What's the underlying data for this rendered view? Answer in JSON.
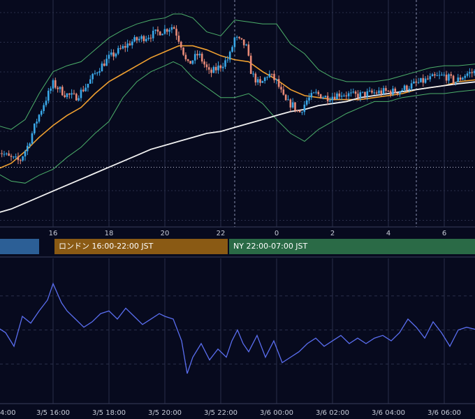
{
  "colors": {
    "background": "#070a1e",
    "grid": "#2a2f4a",
    "candle_up": "#3aa8e8",
    "candle_down": "#e88a78",
    "ma_short": "#f0a030",
    "ma_long": "#f2f2f2",
    "bollinger": "#4caf6a",
    "oscillator": "#5a6ef0",
    "session_tokyo": "#2c5f96",
    "session_london": "#8a5a14",
    "session_ny": "#2a6a46"
  },
  "sessions": [
    {
      "label": ""
    },
    {
      "label": "ロンドン 16:00-22:00 JST"
    },
    {
      "label": "NY 22:00-07:00 JST"
    }
  ],
  "top_axis_ticks": [
    "16",
    "18",
    "20",
    "22",
    "0",
    "2",
    "4",
    "6"
  ],
  "bottom_axis_ticks": [
    "4:00",
    "3/5 16:00",
    "3/5 18:00",
    "3/5 20:00",
    "3/5 22:00",
    "3/6 00:00",
    "3/6 02:00",
    "3/6 04:00",
    "3/6 06:00"
  ],
  "chart_data": [
    {
      "type": "candlestick",
      "title": "",
      "x_unit": "hour (JST), 3/5 14:00 to 3/6 07:00",
      "xlim": [
        14.0,
        31.2
      ],
      "x_ticks": [
        16,
        18,
        20,
        22,
        24,
        26,
        28,
        30
      ],
      "y_scale": "relative price level (no price axis printed)",
      "ylim": [
        0,
        100
      ],
      "grid": true,
      "dashed_vertical_markers": [
        22.5,
        29.0
      ],
      "dotted_horizontal_level": 23.0,
      "price_path": [
        [
          14.0,
          32
        ],
        [
          14.4,
          28
        ],
        [
          14.8,
          26
        ],
        [
          15.1,
          34
        ],
        [
          15.4,
          46
        ],
        [
          15.7,
          56
        ],
        [
          16.0,
          65
        ],
        [
          16.4,
          60
        ],
        [
          16.8,
          58
        ],
        [
          17.2,
          64
        ],
        [
          17.6,
          72
        ],
        [
          18.0,
          78
        ],
        [
          18.4,
          82
        ],
        [
          18.8,
          86
        ],
        [
          19.2,
          88
        ],
        [
          19.6,
          90
        ],
        [
          20.0,
          92
        ],
        [
          20.3,
          94
        ],
        [
          20.6,
          84
        ],
        [
          20.8,
          74
        ],
        [
          21.2,
          80
        ],
        [
          21.6,
          70
        ],
        [
          22.0,
          74
        ],
        [
          22.3,
          78
        ],
        [
          22.5,
          88
        ],
        [
          22.9,
          84
        ],
        [
          23.1,
          70
        ],
        [
          23.4,
          64
        ],
        [
          23.7,
          70
        ],
        [
          24.0,
          66
        ],
        [
          24.3,
          56
        ],
        [
          24.6,
          54
        ],
        [
          24.8,
          50
        ],
        [
          25.1,
          57
        ],
        [
          25.4,
          60
        ],
        [
          25.8,
          58
        ],
        [
          26.3,
          60
        ],
        [
          26.8,
          59
        ],
        [
          27.3,
          60
        ],
        [
          27.8,
          61
        ],
        [
          28.3,
          61
        ],
        [
          28.8,
          64
        ],
        [
          29.2,
          66
        ],
        [
          29.6,
          68
        ],
        [
          30.0,
          69
        ],
        [
          30.4,
          66
        ],
        [
          30.8,
          70
        ],
        [
          31.2,
          71
        ]
      ],
      "series": [
        {
          "kind": "candles"
        },
        {
          "kind": "moving_average_short",
          "values": [
            [
              14.0,
              22
            ],
            [
              14.5,
              25
            ],
            [
              15.0,
              31
            ],
            [
              15.5,
              38
            ],
            [
              16.0,
              44
            ],
            [
              16.5,
              49
            ],
            [
              17.0,
              53
            ],
            [
              17.5,
              60
            ],
            [
              18.0,
              66
            ],
            [
              18.5,
              70
            ],
            [
              19.0,
              74
            ],
            [
              19.5,
              78
            ],
            [
              20.0,
              81
            ],
            [
              20.5,
              84
            ],
            [
              21.0,
              84
            ],
            [
              21.5,
              82
            ],
            [
              22.0,
              79
            ],
            [
              22.5,
              77
            ],
            [
              23.0,
              76
            ],
            [
              23.5,
              71
            ],
            [
              24.0,
              67
            ],
            [
              24.5,
              62
            ],
            [
              25.0,
              59
            ],
            [
              25.5,
              58
            ],
            [
              26.0,
              57
            ],
            [
              26.5,
              57
            ],
            [
              27.0,
              57
            ],
            [
              27.5,
              58
            ],
            [
              28.0,
              59
            ],
            [
              28.5,
              60
            ],
            [
              29.0,
              62
            ],
            [
              29.5,
              63
            ],
            [
              30.0,
              64
            ],
            [
              30.5,
              66
            ],
            [
              31.2,
              67
            ]
          ]
        },
        {
          "kind": "moving_average_long",
          "values": [
            [
              14.0,
              0
            ],
            [
              14.5,
              2
            ],
            [
              15.0,
              5
            ],
            [
              15.5,
              8
            ],
            [
              16.0,
              11
            ],
            [
              16.5,
              14
            ],
            [
              17.0,
              17
            ],
            [
              17.5,
              20
            ],
            [
              18.0,
              23
            ],
            [
              18.5,
              26
            ],
            [
              19.0,
              29
            ],
            [
              19.5,
              32
            ],
            [
              20.0,
              34
            ],
            [
              20.5,
              36
            ],
            [
              21.0,
              38
            ],
            [
              21.5,
              40
            ],
            [
              22.0,
              41
            ],
            [
              22.5,
              43
            ],
            [
              23.0,
              45
            ],
            [
              23.5,
              47
            ],
            [
              24.0,
              49
            ],
            [
              24.5,
              51
            ],
            [
              25.0,
              52
            ],
            [
              25.5,
              54
            ],
            [
              26.0,
              55
            ],
            [
              26.5,
              56
            ],
            [
              27.0,
              58
            ],
            [
              27.5,
              59
            ],
            [
              28.0,
              60
            ],
            [
              28.5,
              61
            ],
            [
              29.0,
              62
            ],
            [
              29.5,
              63
            ],
            [
              30.0,
              64
            ],
            [
              30.5,
              65
            ],
            [
              31.2,
              66
            ]
          ]
        },
        {
          "kind": "bollinger_upper",
          "values": [
            [
              14.0,
              44
            ],
            [
              14.5,
              42
            ],
            [
              15.0,
              47
            ],
            [
              15.5,
              60
            ],
            [
              16.0,
              71
            ],
            [
              16.5,
              74
            ],
            [
              17.0,
              76
            ],
            [
              17.5,
              82
            ],
            [
              18.0,
              88
            ],
            [
              18.5,
              92
            ],
            [
              19.0,
              95
            ],
            [
              19.5,
              97
            ],
            [
              20.0,
              98
            ],
            [
              20.3,
              100
            ],
            [
              20.6,
              100
            ],
            [
              21.0,
              98
            ],
            [
              21.5,
              91
            ],
            [
              22.0,
              89
            ],
            [
              22.5,
              97
            ],
            [
              23.0,
              96
            ],
            [
              23.5,
              95
            ],
            [
              24.0,
              95
            ],
            [
              24.5,
              85
            ],
            [
              25.0,
              80
            ],
            [
              25.5,
              72
            ],
            [
              26.0,
              68
            ],
            [
              26.5,
              66
            ],
            [
              27.0,
              66
            ],
            [
              27.5,
              66
            ],
            [
              28.0,
              67
            ],
            [
              28.5,
              69
            ],
            [
              29.0,
              71
            ],
            [
              29.5,
              73
            ],
            [
              30.0,
              74
            ],
            [
              30.5,
              74
            ],
            [
              31.2,
              75
            ]
          ]
        },
        {
          "kind": "bollinger_lower",
          "values": [
            [
              14.0,
              20
            ],
            [
              14.5,
              16
            ],
            [
              15.0,
              15
            ],
            [
              15.5,
              19
            ],
            [
              16.0,
              22
            ],
            [
              16.5,
              28
            ],
            [
              17.0,
              33
            ],
            [
              17.5,
              40
            ],
            [
              18.0,
              46
            ],
            [
              18.5,
              58
            ],
            [
              19.0,
              66
            ],
            [
              19.5,
              71
            ],
            [
              20.0,
              74
            ],
            [
              20.3,
              76
            ],
            [
              20.6,
              74
            ],
            [
              21.0,
              68
            ],
            [
              21.5,
              63
            ],
            [
              22.0,
              58
            ],
            [
              22.5,
              58
            ],
            [
              23.0,
              60
            ],
            [
              23.5,
              55
            ],
            [
              24.0,
              47
            ],
            [
              24.5,
              40
            ],
            [
              25.0,
              36
            ],
            [
              25.5,
              42
            ],
            [
              26.0,
              46
            ],
            [
              26.5,
              50
            ],
            [
              27.0,
              53
            ],
            [
              27.5,
              56
            ],
            [
              28.0,
              56
            ],
            [
              28.5,
              58
            ],
            [
              29.0,
              59
            ],
            [
              29.5,
              60
            ],
            [
              30.0,
              60
            ],
            [
              30.5,
              61
            ],
            [
              31.2,
              62
            ]
          ]
        }
      ]
    },
    {
      "type": "line",
      "title": "",
      "x_unit": "hour (JST), 3/5 14:00 to 3/6 07:00",
      "xlim": [
        14.0,
        31.2
      ],
      "ylim": [
        0,
        100
      ],
      "dashed_levels": [
        75,
        50,
        25
      ],
      "series": [
        {
          "values": [
            [
              14.0,
              52
            ],
            [
              14.3,
              48
            ],
            [
              14.6,
              38
            ],
            [
              14.9,
              60
            ],
            [
              15.2,
              55
            ],
            [
              15.5,
              64
            ],
            [
              15.8,
              72
            ],
            [
              16.0,
              84
            ],
            [
              16.3,
              70
            ],
            [
              16.5,
              64
            ],
            [
              16.8,
              58
            ],
            [
              17.1,
              52
            ],
            [
              17.4,
              56
            ],
            [
              17.7,
              62
            ],
            [
              18.0,
              64
            ],
            [
              18.3,
              58
            ],
            [
              18.6,
              66
            ],
            [
              18.9,
              60
            ],
            [
              19.2,
              54
            ],
            [
              19.5,
              58
            ],
            [
              19.8,
              62
            ],
            [
              20.0,
              60
            ],
            [
              20.3,
              58
            ],
            [
              20.6,
              42
            ],
            [
              20.8,
              18
            ],
            [
              21.0,
              30
            ],
            [
              21.3,
              40
            ],
            [
              21.6,
              28
            ],
            [
              21.9,
              36
            ],
            [
              22.2,
              30
            ],
            [
              22.4,
              42
            ],
            [
              22.6,
              50
            ],
            [
              22.8,
              40
            ],
            [
              23.0,
              34
            ],
            [
              23.3,
              46
            ],
            [
              23.6,
              30
            ],
            [
              23.9,
              42
            ],
            [
              24.2,
              26
            ],
            [
              24.5,
              30
            ],
            [
              24.8,
              34
            ],
            [
              25.1,
              40
            ],
            [
              25.4,
              44
            ],
            [
              25.7,
              38
            ],
            [
              26.0,
              42
            ],
            [
              26.3,
              46
            ],
            [
              26.6,
              40
            ],
            [
              26.9,
              44
            ],
            [
              27.2,
              40
            ],
            [
              27.5,
              44
            ],
            [
              27.8,
              46
            ],
            [
              28.1,
              42
            ],
            [
              28.4,
              48
            ],
            [
              28.7,
              58
            ],
            [
              29.0,
              52
            ],
            [
              29.3,
              44
            ],
            [
              29.6,
              56
            ],
            [
              29.9,
              48
            ],
            [
              30.2,
              38
            ],
            [
              30.5,
              50
            ],
            [
              30.8,
              52
            ],
            [
              31.2,
              50
            ]
          ]
        }
      ]
    }
  ]
}
